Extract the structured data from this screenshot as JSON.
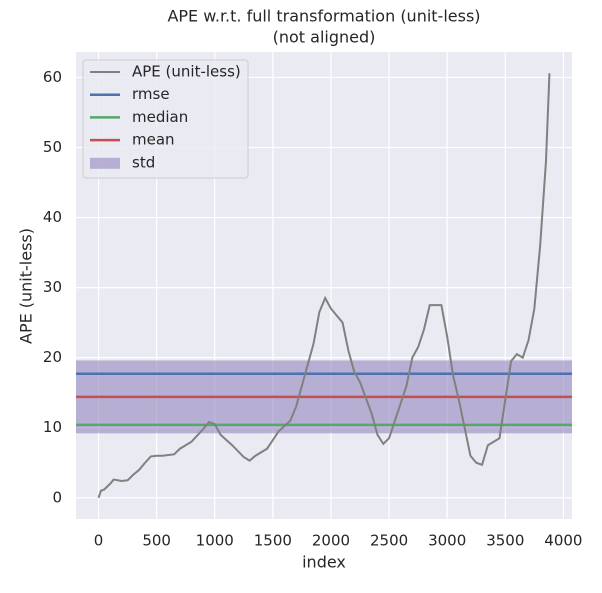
{
  "chart_data": {
    "type": "line",
    "title": [
      "APE w.r.t. full transformation (unit-less)",
      "(not aligned)"
    ],
    "xlabel": "index",
    "ylabel": "APE (unit-less)",
    "x": [
      0,
      20,
      50,
      100,
      130,
      200,
      250,
      300,
      350,
      400,
      450,
      500,
      550,
      650,
      700,
      800,
      900,
      950,
      1000,
      1050,
      1150,
      1250,
      1300,
      1350,
      1450,
      1550,
      1650,
      1700,
      1800,
      1850,
      1900,
      1950,
      2000,
      2050,
      2100,
      2150,
      2200,
      2250,
      2350,
      2400,
      2450,
      2500,
      2550,
      2650,
      2700,
      2750,
      2800,
      2850,
      2900,
      2950,
      3000,
      3050,
      3100,
      3150,
      3200,
      3250,
      3300,
      3350,
      3400,
      3450,
      3500,
      3550,
      3600,
      3650,
      3700,
      3750,
      3800,
      3850,
      3880
    ],
    "series": [
      {
        "name": "APE (unit-less)",
        "color": "#808080",
        "values": [
          0,
          1,
          1.2,
          2,
          2.6,
          2.4,
          2.5,
          3.3,
          4,
          5,
          5.9,
          6,
          6,
          6.2,
          7,
          8,
          9.8,
          10.8,
          10.5,
          9,
          7.5,
          5.8,
          5.3,
          6,
          7,
          9.5,
          11,
          13,
          19,
          22,
          26.5,
          28.5,
          27,
          26,
          25,
          21,
          18,
          16.5,
          12,
          9,
          7.7,
          8.5,
          11,
          16,
          20,
          21.5,
          24,
          27.5,
          27.5,
          27.5,
          23,
          17.5,
          14,
          10,
          6,
          5,
          4.7,
          7.5,
          8,
          8.5,
          14,
          19.5,
          20.5,
          20,
          22.5,
          27,
          36,
          48,
          60.6
        ]
      }
    ],
    "stats": [
      {
        "name": "rmse",
        "value": 17.7,
        "color": "#4c72b0"
      },
      {
        "name": "median",
        "value": 10.4,
        "color": "#55a868"
      },
      {
        "name": "mean",
        "value": 14.4,
        "color": "#c44e52"
      }
    ],
    "std": {
      "name": "std",
      "value": 5.2,
      "color": "#8172b3"
    },
    "xlim": [
      -194,
      4074
    ],
    "ylim": [
      -3.03,
      63.63
    ],
    "xticks": [
      0,
      500,
      1000,
      1500,
      2000,
      2500,
      3000,
      3500,
      4000
    ],
    "yticks": [
      0,
      10,
      20,
      30,
      40,
      50,
      60
    ],
    "grid": true
  }
}
